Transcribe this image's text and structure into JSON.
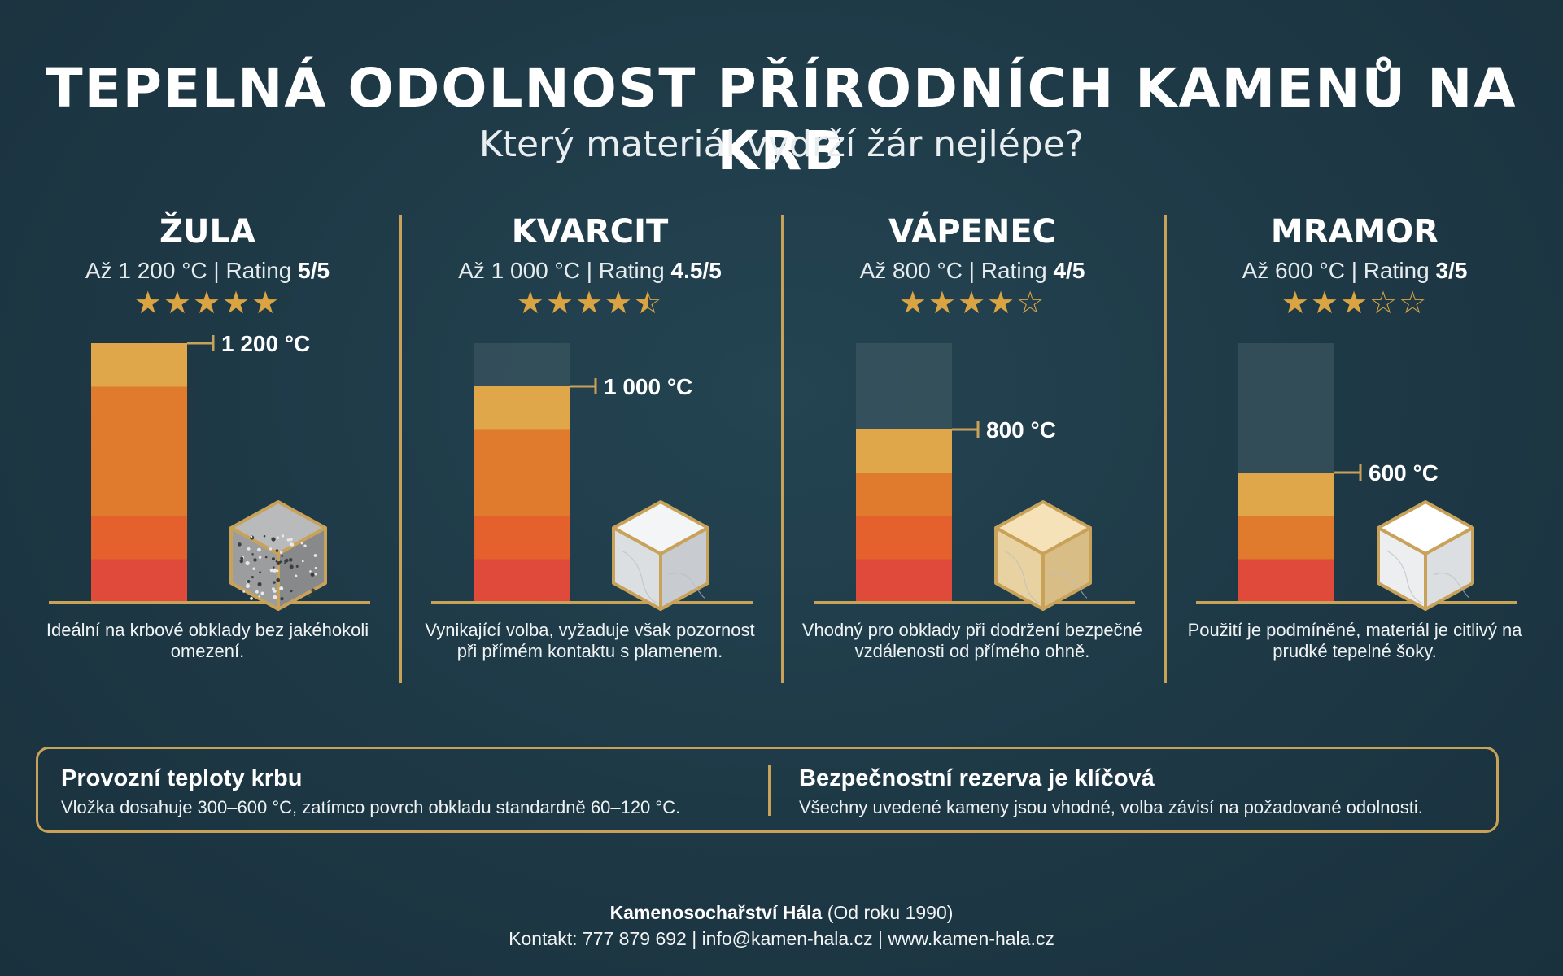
{
  "header": {
    "title": "TEPELNÁ ODOLNOST PŘÍRODNÍCH KAMENŮ NA KRB",
    "subtitle": "Který materiál vydrží žár nejlépe?"
  },
  "colors": {
    "background": "#1f3a47",
    "accent_gold": "#c9a25a",
    "star": "#d9a441",
    "bar_stops": [
      "#e0a64a",
      "#e07a2c",
      "#e4612e",
      "#e04a3a"
    ],
    "bar_empty": "#3f5a64"
  },
  "materials": [
    {
      "name": "ŽULA",
      "range_text": "Až 1 200 °C | Rating ",
      "rating_text": "5/5",
      "rating": 5,
      "temp_label": "1 200 °C",
      "description": "Ideální na krbové obklady bez jakéhokoli omezení.",
      "cube": "granite"
    },
    {
      "name": "KVARCIT",
      "range_text": "Až 1 000 °C | Rating ",
      "rating_text": "4.5/5",
      "rating": 4.5,
      "temp_label": "1 000 °C",
      "description": "Vynikající volba, vyžaduje však pozornost při přímém kontaktu s plamenem.",
      "cube": "quartzite"
    },
    {
      "name": "VÁPENEC",
      "range_text": "Až 800 °C | Rating ",
      "rating_text": "4/5",
      "rating": 4,
      "temp_label": "800 °C",
      "description": "Vhodný pro obklady při dodržení bezpečné vzdálenosti od přímého ohně.",
      "cube": "limestone"
    },
    {
      "name": "MRAMOR",
      "range_text": "Až 600 °C | Rating ",
      "rating_text": "3/5",
      "rating": 3,
      "temp_label": "600 °C",
      "description": "Použití je podmíněné, materiál je citlivý na prudké tepelné šoky.",
      "cube": "marble"
    }
  ],
  "chart_data": {
    "type": "bar",
    "categories": [
      "ŽULA",
      "KVARCIT",
      "VÁPENEC",
      "MRAMOR"
    ],
    "values": [
      1200,
      1000,
      800,
      600
    ],
    "ylim": [
      0,
      1200
    ],
    "ylabel": "",
    "xlabel": "",
    "title": "TEPELNÁ ODOLNOST PŘÍRODNÍCH KAMENŮ NA KRB",
    "data_labels": [
      "1 200 °C",
      "1 000 °C",
      "800 °C",
      "600 °C"
    ],
    "ratings": [
      5,
      4.5,
      4,
      3
    ],
    "grid": false
  },
  "info_box": {
    "left_title": "Provozní teploty krbu",
    "left_text": "Vložka dosahuje 300–600 °C, zatímco povrch obkladu standardně 60–120 °C.",
    "right_title": "Bezpečnostní rezerva je klíčová",
    "right_text": "Všechny uvedené kameny jsou vhodné, volba závisí na požadované odolnosti."
  },
  "footer": {
    "company": "Kamenosochařství Hála",
    "since": " (Od roku 1990)",
    "contact": "Kontakt: 777 879 692 | info@kamen-hala.cz | www.kamen-hala.cz"
  }
}
